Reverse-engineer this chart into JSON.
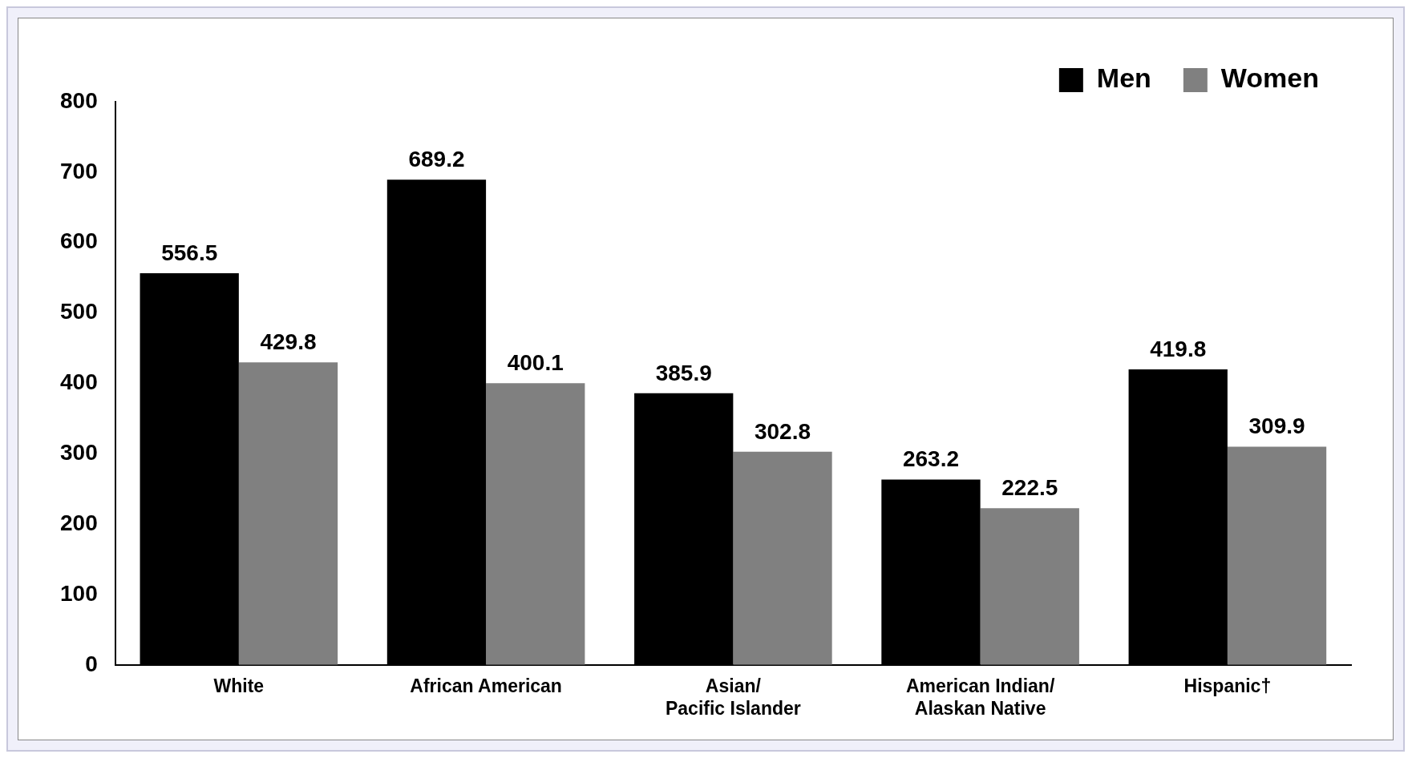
{
  "chart_data": {
    "type": "bar",
    "categories": [
      "White",
      "African American",
      "Asian/Pacific Islander",
      "American Indian/Alaskan Native",
      "Hispanic†"
    ],
    "series": [
      {
        "name": "Men",
        "color": "#000000",
        "values": [
          556.5,
          689.2,
          385.9,
          263.2,
          419.8
        ]
      },
      {
        "name": "Women",
        "color": "#808080",
        "values": [
          429.8,
          400.1,
          302.8,
          222.5,
          309.9
        ]
      }
    ],
    "ylim": [
      0,
      800
    ],
    "yticks": [
      0,
      100,
      200,
      300,
      400,
      500,
      600,
      700,
      800
    ],
    "grid": false,
    "legend": "top right",
    "data_labels": true
  }
}
